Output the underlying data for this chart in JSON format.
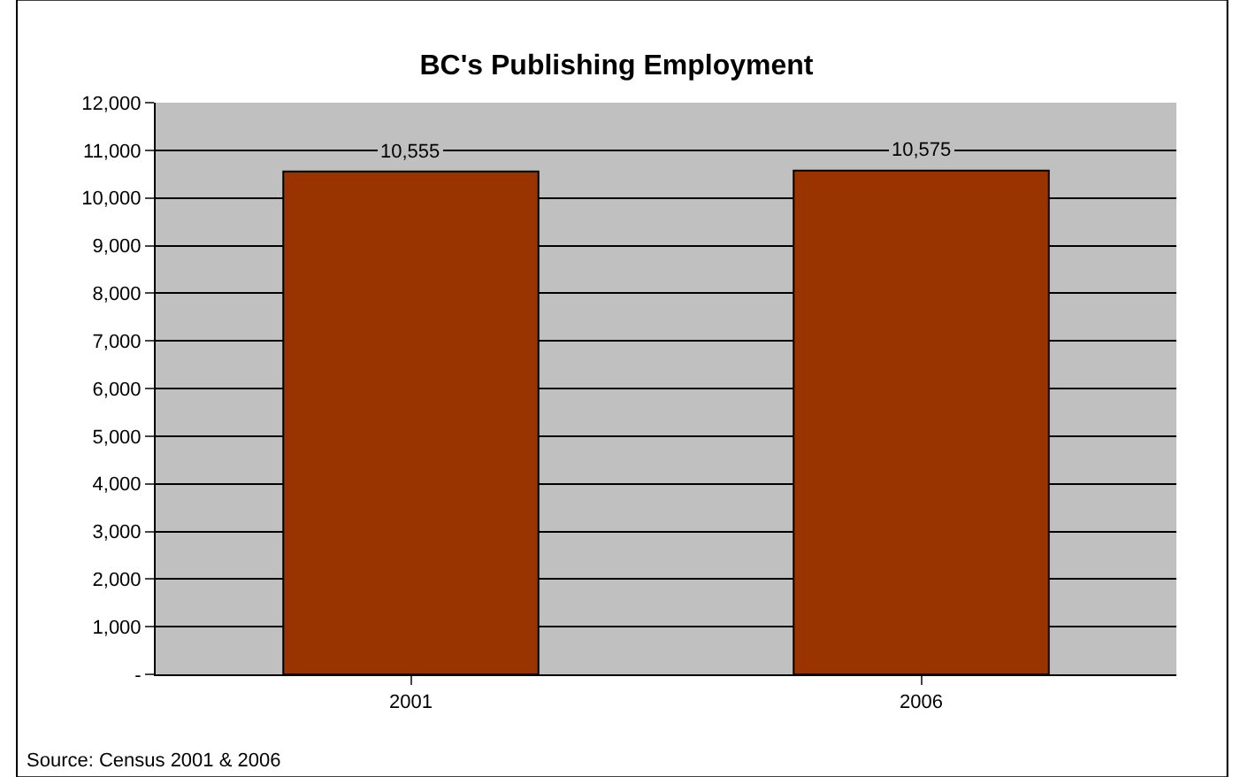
{
  "chart_data": {
    "type": "bar",
    "title": "BC's Publishing Employment",
    "categories": [
      "2001",
      "2006"
    ],
    "values": [
      10555,
      10575
    ],
    "value_labels": [
      "10,555",
      "10,575"
    ],
    "color": "#993300",
    "ylim": [
      0,
      12000
    ],
    "yticks": [
      {
        "value": 0,
        "label": "-"
      },
      {
        "value": 1000,
        "label": "1,000"
      },
      {
        "value": 2000,
        "label": "2,000"
      },
      {
        "value": 3000,
        "label": "3,000"
      },
      {
        "value": 4000,
        "label": "4,000"
      },
      {
        "value": 5000,
        "label": "5,000"
      },
      {
        "value": 6000,
        "label": "6,000"
      },
      {
        "value": 7000,
        "label": "7,000"
      },
      {
        "value": 8000,
        "label": "8,000"
      },
      {
        "value": 9000,
        "label": "9,000"
      },
      {
        "value": 10000,
        "label": "10,000"
      },
      {
        "value": 11000,
        "label": "11,000"
      },
      {
        "value": 12000,
        "label": "12,000"
      }
    ],
    "grid": "y",
    "legend": false,
    "annotations": [
      "Source: Census 2001 & 2006"
    ]
  }
}
